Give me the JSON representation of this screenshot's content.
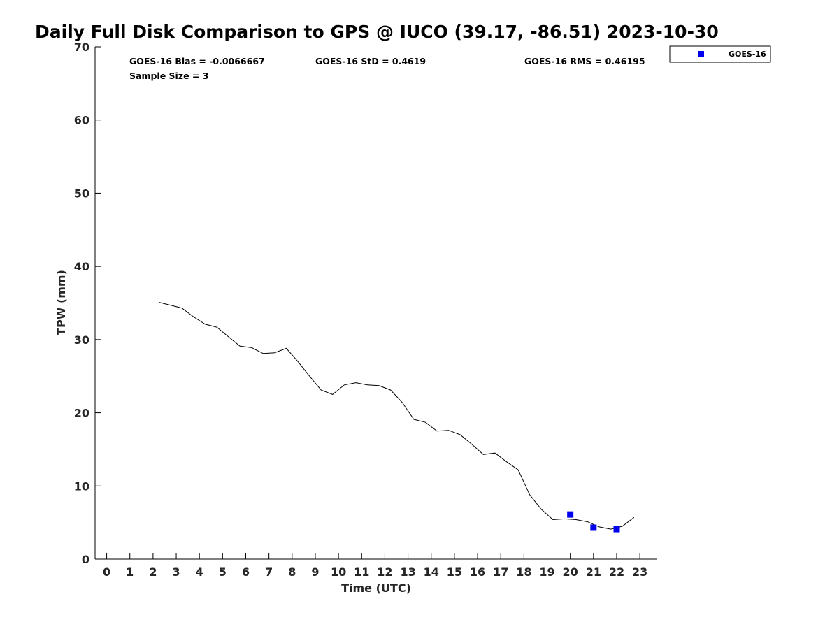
{
  "chart_data": {
    "type": "line",
    "title": "Daily Full Disk Comparison to GPS @ IUCO (39.17, -86.51) 2023-10-30",
    "xlabel": "Time (UTC)",
    "ylabel": "TPW (mm)",
    "xlim": [
      -0.5,
      23.75
    ],
    "ylim": [
      0,
      70
    ],
    "xticks": [
      0,
      1,
      2,
      3,
      4,
      5,
      6,
      7,
      8,
      9,
      10,
      11,
      12,
      13,
      14,
      15,
      16,
      17,
      18,
      19,
      20,
      21,
      22,
      23
    ],
    "yticks": [
      0,
      10,
      20,
      30,
      40,
      50,
      60,
      70
    ],
    "grid": false,
    "legend_position": "outside top-right",
    "stats": {
      "bias": "GOES-16 Bias = -0.0066667",
      "std": "GOES-16 StD = 0.4619",
      "rms": "GOES-16 RMS = 0.46195",
      "sample": "Sample Size = 3"
    },
    "series": [
      {
        "kind": "line",
        "color": "#000000",
        "x": [
          2.25,
          2.75,
          3.25,
          3.75,
          4.25,
          4.75,
          5.25,
          5.75,
          6.25,
          6.75,
          7.25,
          7.75,
          8.25,
          8.75,
          9.25,
          9.75,
          10.25,
          10.75,
          11.25,
          11.75,
          12.25,
          12.75,
          13.25,
          13.75,
          14.25,
          14.75,
          15.25,
          15.75,
          16.25,
          16.75,
          17.25,
          17.75,
          18.25,
          18.75,
          19.25,
          19.75,
          20.25,
          20.75,
          21.25,
          21.75,
          22.25,
          22.75
        ],
        "y": [
          35.1,
          34.7,
          34.3,
          33.1,
          32.1,
          31.7,
          30.4,
          29.1,
          28.9,
          28.1,
          28.2,
          28.8,
          27.0,
          25.0,
          23.1,
          22.5,
          23.8,
          24.1,
          23.8,
          23.7,
          23.1,
          21.4,
          19.1,
          18.7,
          17.5,
          17.6,
          17.0,
          15.7,
          14.3,
          14.5,
          13.3,
          12.2,
          8.8,
          6.8,
          5.4,
          5.5,
          5.4,
          5.1,
          4.4,
          4.1,
          4.5,
          5.7
        ]
      },
      {
        "kind": "scatter",
        "name": "GOES-16",
        "color": "#0000ee",
        "marker": "square",
        "x": [
          20,
          21,
          22
        ],
        "y": [
          6.1,
          4.3,
          4.1
        ]
      }
    ]
  }
}
